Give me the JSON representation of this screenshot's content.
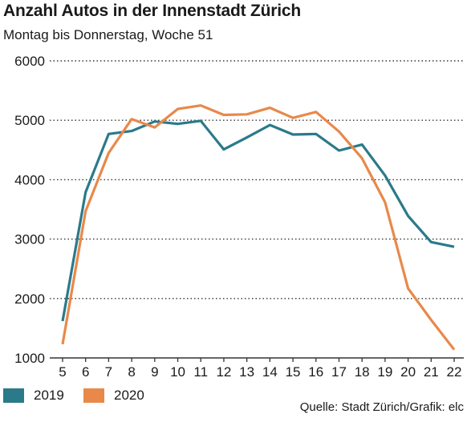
{
  "title": "Anzahl Autos in der Innenstadt Zürich",
  "subtitle": "Montag bis Donnerstag, Woche 51",
  "source": "Quelle: Stadt Zürich/Grafik: elc",
  "colors": {
    "s2019": "#2a7a8a",
    "s2020": "#e8894a",
    "grid": "#333333",
    "axis": "#333333"
  },
  "chart_data": {
    "type": "line",
    "title": "Anzahl Autos in der Innenstadt Zürich",
    "subtitle": "Montag bis Donnerstag, Woche 51",
    "xlabel": "",
    "ylabel": "",
    "x": [
      5,
      6,
      7,
      8,
      9,
      10,
      11,
      12,
      13,
      14,
      15,
      16,
      17,
      18,
      19,
      20,
      21,
      22
    ],
    "x_tick_labels": [
      "5",
      "6",
      "7",
      "8",
      "9",
      "10",
      "11",
      "12",
      "13",
      "14",
      "15",
      "16",
      "17",
      "18",
      "19",
      "20",
      "21",
      "22"
    ],
    "ylim": [
      1000,
      6000
    ],
    "y_ticks": [
      1000,
      2000,
      3000,
      4000,
      5000,
      6000
    ],
    "y_tick_labels": [
      "1000",
      "2000",
      "3000",
      "4000",
      "5000",
      "6000"
    ],
    "grid": "horizontal dotted",
    "legend_position": "bottom-left",
    "series": [
      {
        "name": "2019",
        "values": [
          1620,
          3790,
          4770,
          4820,
          4980,
          4940,
          4990,
          4510,
          4710,
          4920,
          4760,
          4770,
          4490,
          4590,
          4070,
          3390,
          2950,
          2870
        ]
      },
      {
        "name": "2020",
        "values": [
          1230,
          3470,
          4450,
          5020,
          4880,
          5190,
          5250,
          5090,
          5100,
          5210,
          5040,
          5140,
          4810,
          4360,
          3620,
          2170,
          1640,
          1140
        ]
      }
    ]
  }
}
